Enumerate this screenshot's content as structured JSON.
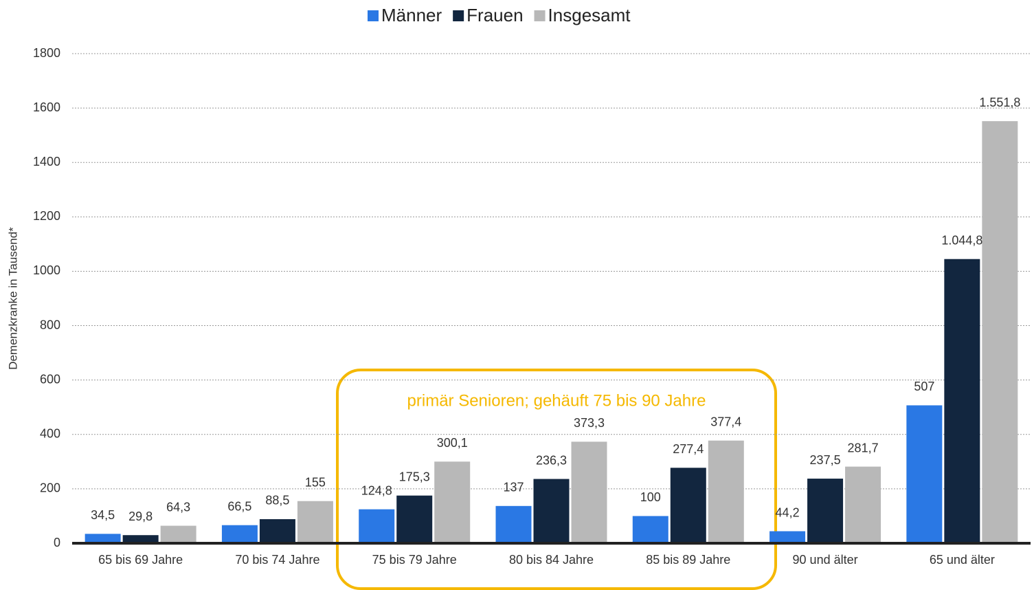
{
  "chart_data": {
    "type": "bar",
    "y_label": "Demenzkranke in Tausend*",
    "annotation": "primär Senioren; gehäuft 75 bis 90 Jahre",
    "categories": [
      "65 bis 69 Jahre",
      "70 bis 74 Jahre",
      "75 bis 79 Jahre",
      "80 bis 84 Jahre",
      "85 bis 89 Jahre",
      "90 und älter",
      "65 und älter"
    ],
    "series": [
      {
        "name": "Männer",
        "color": "#2a78e4",
        "values": [
          34.5,
          66.5,
          124.8,
          137,
          100,
          44.2,
          507
        ],
        "value_labels": [
          "34,5",
          "66,5",
          "124,8",
          "137",
          "100",
          "44,2",
          "507"
        ]
      },
      {
        "name": "Frauen",
        "color": "#12263f",
        "values": [
          29.8,
          88.5,
          175.3,
          236.3,
          277.4,
          237.5,
          1044.8
        ],
        "value_labels": [
          "29,8",
          "88,5",
          "175,3",
          "236,3",
          "277,4",
          "237,5",
          "1.044,8"
        ]
      },
      {
        "name": "Insgesamt",
        "color": "#b8b8b8",
        "values": [
          64.3,
          155,
          300.1,
          373.3,
          377.4,
          281.7,
          1551.8
        ],
        "value_labels": [
          "64,3",
          "155",
          "300,1",
          "373,3",
          "377,4",
          "281,7",
          "1.551,8"
        ]
      }
    ],
    "ylim": [
      0,
      1800
    ],
    "yticks": [
      0,
      200,
      400,
      600,
      800,
      1000,
      1200,
      1400,
      1600,
      1800
    ],
    "grid": true,
    "legend": "top"
  }
}
